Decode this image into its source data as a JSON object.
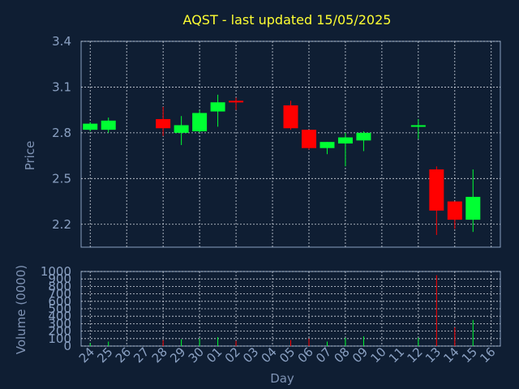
{
  "chart_data": {
    "type": "candlestick",
    "title": "AQST - last updated 15/05/2025",
    "xlabel": "Day",
    "ylabel": "Price",
    "volume_ylabel": "Volume (0000)",
    "ylim": [
      2.05,
      3.4
    ],
    "yticks": [
      2.2,
      2.5,
      2.8,
      3.1,
      3.4
    ],
    "volume_ylim": [
      0,
      1000
    ],
    "volume_yticks": [
      0,
      100,
      200,
      300,
      400,
      500,
      600,
      700,
      800,
      900,
      1000
    ],
    "grid": true,
    "colors": {
      "up": "#00ff33",
      "down": "#ff0000",
      "background": "#0f1e33",
      "title": "#ffff33",
      "axis": "#8aa0c2"
    },
    "x_ticks": [
      "24",
      "25",
      "26",
      "27",
      "28",
      "29",
      "30",
      "01",
      "02",
      "03",
      "04",
      "05",
      "06",
      "07",
      "08",
      "09",
      "10",
      "11",
      "12",
      "13",
      "14",
      "15",
      "16"
    ],
    "candles": [
      {
        "day": "24",
        "open": 2.82,
        "close": 2.86,
        "high": 2.87,
        "low": 2.81,
        "volume": 40
      },
      {
        "day": "25",
        "open": 2.82,
        "close": 2.88,
        "high": 2.9,
        "low": 2.8,
        "volume": 60
      },
      {
        "day": "28",
        "open": 2.89,
        "close": 2.83,
        "high": 2.97,
        "low": 2.78,
        "volume": 80
      },
      {
        "day": "29",
        "open": 2.8,
        "close": 2.85,
        "high": 2.91,
        "low": 2.72,
        "volume": 90
      },
      {
        "day": "30",
        "open": 2.81,
        "close": 2.93,
        "high": 2.95,
        "low": 2.8,
        "volume": 100
      },
      {
        "day": "01",
        "open": 2.94,
        "close": 3.0,
        "high": 3.05,
        "low": 2.84,
        "volume": 120
      },
      {
        "day": "02",
        "open": 3.01,
        "close": 3.0,
        "high": 3.03,
        "low": 2.95,
        "volume": 70
      },
      {
        "day": "05",
        "open": 2.98,
        "close": 2.83,
        "high": 3.01,
        "low": 2.82,
        "volume": 80
      },
      {
        "day": "06",
        "open": 2.82,
        "close": 2.7,
        "high": 2.82,
        "low": 2.69,
        "volume": 100
      },
      {
        "day": "07",
        "open": 2.7,
        "close": 2.74,
        "high": 2.74,
        "low": 2.66,
        "volume": 60
      },
      {
        "day": "08",
        "open": 2.73,
        "close": 2.77,
        "high": 2.8,
        "low": 2.58,
        "volume": 110
      },
      {
        "day": "09",
        "open": 2.75,
        "close": 2.8,
        "high": 2.81,
        "low": 2.68,
        "volume": 130
      },
      {
        "day": "12",
        "open": 2.85,
        "close": 2.85,
        "high": 2.89,
        "low": 2.76,
        "volume": 110
      },
      {
        "day": "13",
        "open": 2.56,
        "close": 2.29,
        "high": 2.58,
        "low": 2.13,
        "volume": 950
      },
      {
        "day": "14",
        "open": 2.35,
        "close": 2.23,
        "high": 2.35,
        "low": 2.17,
        "volume": 250
      },
      {
        "day": "15",
        "open": 2.23,
        "close": 2.38,
        "high": 2.56,
        "low": 2.15,
        "volume": 350
      }
    ]
  }
}
